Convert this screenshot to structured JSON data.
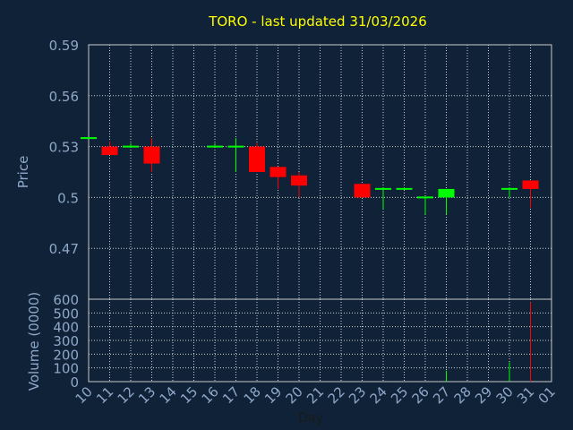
{
  "chart_data": {
    "type": "candlestick",
    "title": "TORO - last updated 31/03/2026",
    "xlabel": "Day",
    "ylabel_price": "Price",
    "ylabel_volume": "Volume (0000)",
    "x_ticks": [
      "10",
      "11",
      "12",
      "13",
      "14",
      "15",
      "16",
      "17",
      "18",
      "19",
      "20",
      "21",
      "22",
      "23",
      "24",
      "25",
      "26",
      "27",
      "28",
      "29",
      "30",
      "31",
      "01"
    ],
    "price_ylim": [
      0.44,
      0.59
    ],
    "price_ticks": [
      "0.59",
      "0.56",
      "0.53",
      "0.5",
      "0.47"
    ],
    "price_tick_values": [
      0.59,
      0.56,
      0.53,
      0.5,
      0.47
    ],
    "volume_ylim": [
      0,
      600
    ],
    "volume_ticks": [
      "600",
      "500",
      "400",
      "300",
      "200",
      "100",
      "0"
    ],
    "volume_tick_values": [
      600,
      500,
      400,
      300,
      200,
      100,
      0
    ],
    "grid": true,
    "colors": {
      "background": "#0f2238",
      "plot_border": "#c8c8c8",
      "grid": "#d0d0d0",
      "title": "#ffff00",
      "axis_text": "#8fa8c8",
      "up": "#00ff00",
      "down": "#ff0000",
      "flat": "#00ff00"
    },
    "candles": [
      {
        "day": "10",
        "open": 0.535,
        "high": 0.535,
        "low": 0.535,
        "close": 0.535,
        "volume": 0
      },
      {
        "day": "11",
        "open": 0.53,
        "high": 0.533,
        "low": 0.525,
        "close": 0.525,
        "volume": 0
      },
      {
        "day": "12",
        "open": 0.53,
        "high": 0.532,
        "low": 0.53,
        "close": 0.53,
        "volume": 0
      },
      {
        "day": "13",
        "open": 0.53,
        "high": 0.535,
        "low": 0.515,
        "close": 0.52,
        "volume": 0
      },
      {
        "day": "16",
        "open": 0.53,
        "high": 0.532,
        "low": 0.53,
        "close": 0.53,
        "volume": 0
      },
      {
        "day": "17",
        "open": 0.53,
        "high": 0.535,
        "low": 0.515,
        "close": 0.53,
        "volume": 0
      },
      {
        "day": "18",
        "open": 0.53,
        "high": 0.532,
        "low": 0.515,
        "close": 0.515,
        "volume": 0
      },
      {
        "day": "19",
        "open": 0.518,
        "high": 0.518,
        "low": 0.505,
        "close": 0.512,
        "volume": 0
      },
      {
        "day": "20",
        "open": 0.513,
        "high": 0.515,
        "low": 0.5,
        "close": 0.507,
        "volume": 0
      },
      {
        "day": "23",
        "open": 0.508,
        "high": 0.508,
        "low": 0.5,
        "close": 0.5,
        "volume": 0
      },
      {
        "day": "24",
        "open": 0.505,
        "high": 0.506,
        "low": 0.493,
        "close": 0.505,
        "volume": 0
      },
      {
        "day": "25",
        "open": 0.505,
        "high": 0.506,
        "low": 0.505,
        "close": 0.505,
        "volume": 0
      },
      {
        "day": "26",
        "open": 0.5,
        "high": 0.5,
        "low": 0.49,
        "close": 0.5,
        "volume": 0
      },
      {
        "day": "27",
        "open": 0.5,
        "high": 0.505,
        "low": 0.49,
        "close": 0.505,
        "volume": 80
      },
      {
        "day": "30",
        "open": 0.505,
        "high": 0.506,
        "low": 0.5,
        "close": 0.505,
        "volume": 140
      },
      {
        "day": "31",
        "open": 0.51,
        "high": 0.51,
        "low": 0.494,
        "close": 0.505,
        "volume": 580
      }
    ]
  }
}
